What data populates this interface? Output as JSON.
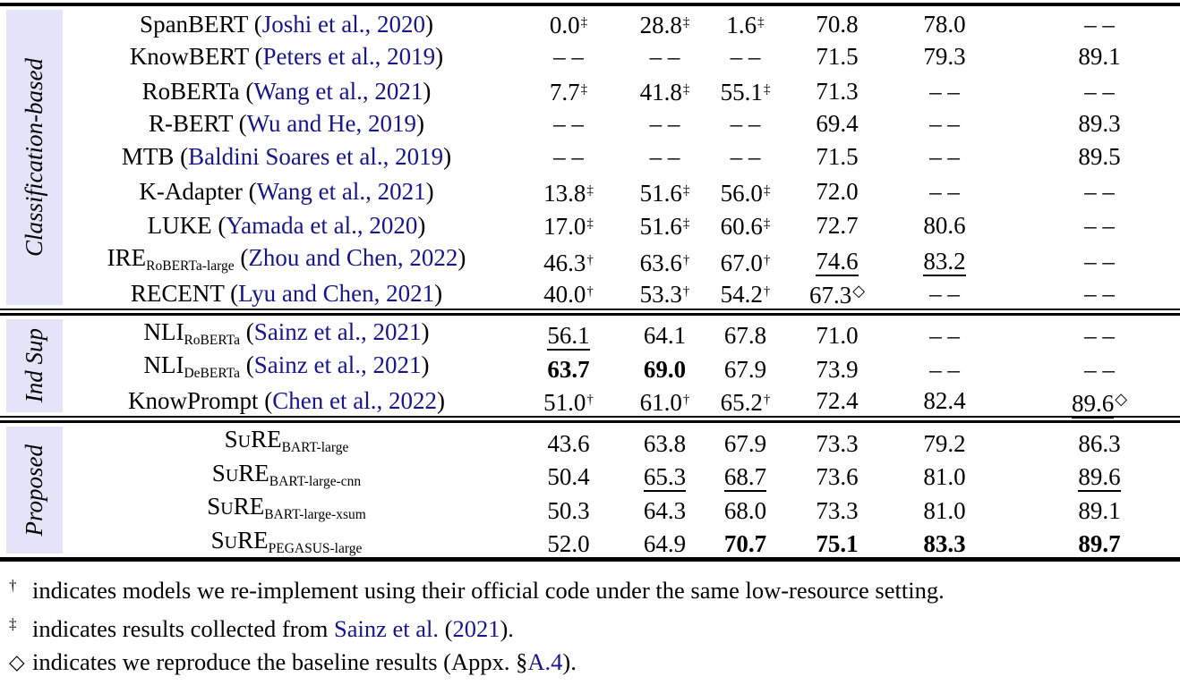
{
  "table": {
    "link_color": "#16168c",
    "band_color": "#e4e4f8",
    "groups": [
      {
        "label": "Classification-based",
        "rows": [
          {
            "name": {
              "base": "SpanBERT",
              "cite": "Joshi et al., 2020"
            },
            "cells": [
              {
                "t": "0.0",
                "sup": "‡"
              },
              {
                "t": "28.8",
                "sup": "‡"
              },
              {
                "t": "1.6",
                "sup": "‡"
              },
              {
                "t": "70.8"
              },
              {
                "t": "78.0"
              },
              {
                "t": "– –",
                "dash": true
              }
            ]
          },
          {
            "name": {
              "base": "KnowBERT",
              "cite": "Peters et al., 2019"
            },
            "cells": [
              {
                "t": "– –",
                "dash": true
              },
              {
                "t": "– –",
                "dash": true
              },
              {
                "t": "– –",
                "dash": true
              },
              {
                "t": "71.5"
              },
              {
                "t": "79.3"
              },
              {
                "t": "89.1"
              }
            ]
          },
          {
            "name": {
              "base": "RoBERTa",
              "cite": "Wang et al., 2021"
            },
            "cells": [
              {
                "t": "7.7",
                "sup": "‡"
              },
              {
                "t": "41.8",
                "sup": "‡"
              },
              {
                "t": "55.1",
                "sup": "‡"
              },
              {
                "t": "71.3"
              },
              {
                "t": "– –",
                "dash": true
              },
              {
                "t": "– –",
                "dash": true
              }
            ]
          },
          {
            "name": {
              "base": "R-BERT",
              "cite": "Wu and He, 2019"
            },
            "cells": [
              {
                "t": "– –",
                "dash": true
              },
              {
                "t": "– –",
                "dash": true
              },
              {
                "t": "– –",
                "dash": true
              },
              {
                "t": "69.4"
              },
              {
                "t": "– –",
                "dash": true
              },
              {
                "t": "89.3"
              }
            ]
          },
          {
            "name": {
              "base": "MTB",
              "cite": "Baldini Soares et al., 2019"
            },
            "cells": [
              {
                "t": "– –",
                "dash": true
              },
              {
                "t": "– –",
                "dash": true
              },
              {
                "t": "– –",
                "dash": true
              },
              {
                "t": "71.5"
              },
              {
                "t": "– –",
                "dash": true
              },
              {
                "t": "89.5"
              }
            ]
          },
          {
            "name": {
              "base": "K-Adapter",
              "cite": "Wang et al., 2021"
            },
            "cells": [
              {
                "t": "13.8",
                "sup": "‡"
              },
              {
                "t": "51.6",
                "sup": "‡"
              },
              {
                "t": "56.0",
                "sup": "‡"
              },
              {
                "t": "72.0"
              },
              {
                "t": "– –",
                "dash": true
              },
              {
                "t": "– –",
                "dash": true
              }
            ]
          },
          {
            "name": {
              "base": "LUKE",
              "cite": "Yamada et al., 2020"
            },
            "cells": [
              {
                "t": "17.0",
                "sup": "‡"
              },
              {
                "t": "51.6",
                "sup": "‡"
              },
              {
                "t": "60.6",
                "sup": "‡"
              },
              {
                "t": "72.7"
              },
              {
                "t": "80.6"
              },
              {
                "t": "– –",
                "dash": true
              }
            ]
          },
          {
            "name": {
              "base": "IRE",
              "sub": "RoBERTa-large",
              "cite": "Zhou and Chen, 2022"
            },
            "cells": [
              {
                "t": "46.3",
                "sup": "†"
              },
              {
                "t": "63.6",
                "sup": "†"
              },
              {
                "t": "67.0",
                "sup": "†"
              },
              {
                "t": "74.6",
                "u": true
              },
              {
                "t": "83.2",
                "u": true
              },
              {
                "t": "– –",
                "dash": true
              }
            ]
          },
          {
            "name": {
              "base": "RECENT",
              "cite": "Lyu and Chen, 2021"
            },
            "cells": [
              {
                "t": "40.0",
                "sup": "†"
              },
              {
                "t": "53.3",
                "sup": "†"
              },
              {
                "t": "54.2",
                "sup": "†"
              },
              {
                "t": "67.3",
                "sup": "◇"
              },
              {
                "t": "– –",
                "dash": true
              },
              {
                "t": "– –",
                "dash": true
              }
            ]
          }
        ]
      },
      {
        "label": "Ind Sup",
        "rows": [
          {
            "name": {
              "base": "NLI",
              "sub": "RoBERTa",
              "cite": "Sainz et al., 2021"
            },
            "cells": [
              {
                "t": "56.1",
                "u": true
              },
              {
                "t": "64.1"
              },
              {
                "t": "67.8"
              },
              {
                "t": "71.0"
              },
              {
                "t": "– –",
                "dash": true
              },
              {
                "t": "– –",
                "dash": true
              }
            ]
          },
          {
            "name": {
              "base": "NLI",
              "sub": "DeBERTa",
              "cite": "Sainz et al., 2021"
            },
            "cells": [
              {
                "t": "63.7",
                "b": true
              },
              {
                "t": "69.0",
                "b": true
              },
              {
                "t": "67.9"
              },
              {
                "t": "73.9"
              },
              {
                "t": "– –",
                "dash": true
              },
              {
                "t": "– –",
                "dash": true
              }
            ]
          },
          {
            "name": {
              "base": "KnowPrompt",
              "cite": "Chen et al., 2022"
            },
            "cells": [
              {
                "t": "51.0",
                "sup": "†"
              },
              {
                "t": "61.0",
                "sup": "†"
              },
              {
                "t": "65.2",
                "sup": "†"
              },
              {
                "t": "72.4"
              },
              {
                "t": "82.4"
              },
              {
                "t": "89.6",
                "u": true,
                "sup": "◇"
              }
            ]
          }
        ]
      },
      {
        "label": "Proposed",
        "rows": [
          {
            "name": {
              "base": "SuRE",
              "sc": true,
              "sub": "BART-large"
            },
            "cells": [
              {
                "t": "43.6"
              },
              {
                "t": "63.8"
              },
              {
                "t": "67.9"
              },
              {
                "t": "73.3"
              },
              {
                "t": "79.2"
              },
              {
                "t": "86.3"
              }
            ]
          },
          {
            "name": {
              "base": "SuRE",
              "sc": true,
              "sub": "BART-large-cnn"
            },
            "cells": [
              {
                "t": "50.4"
              },
              {
                "t": "65.3",
                "u": true
              },
              {
                "t": "68.7",
                "u": true
              },
              {
                "t": "73.6"
              },
              {
                "t": "81.0"
              },
              {
                "t": "89.6",
                "u": true
              }
            ]
          },
          {
            "name": {
              "base": "SuRE",
              "sc": true,
              "sub": "BART-large-xsum"
            },
            "cells": [
              {
                "t": "50.3"
              },
              {
                "t": "64.3"
              },
              {
                "t": "68.0"
              },
              {
                "t": "73.3"
              },
              {
                "t": "81.0"
              },
              {
                "t": "89.1"
              }
            ]
          },
          {
            "name": {
              "base": "SuRE",
              "sc": true,
              "sub": "PEGASUS-large"
            },
            "cells": [
              {
                "t": "52.0"
              },
              {
                "t": "64.9"
              },
              {
                "t": "70.7",
                "b": true
              },
              {
                "t": "75.1",
                "b": true
              },
              {
                "t": "83.3",
                "b": true
              },
              {
                "t": "89.7",
                "b": true
              }
            ]
          }
        ]
      }
    ]
  },
  "footnotes": [
    {
      "marker": "†",
      "parts": [
        {
          "t": "indicates models we re-implement using their official code under the same low-resource setting."
        }
      ]
    },
    {
      "marker": "‡",
      "parts": [
        {
          "t": "indicates results collected from "
        },
        {
          "t": "Sainz et al.",
          "link": true
        },
        {
          "t": " ("
        },
        {
          "t": "2021",
          "link": true
        },
        {
          "t": ")."
        }
      ]
    },
    {
      "marker": "◇",
      "parts": [
        {
          "t": "indicates we reproduce the baseline results (Appx. §"
        },
        {
          "t": "A.4",
          "link": true
        },
        {
          "t": ")."
        }
      ]
    }
  ]
}
